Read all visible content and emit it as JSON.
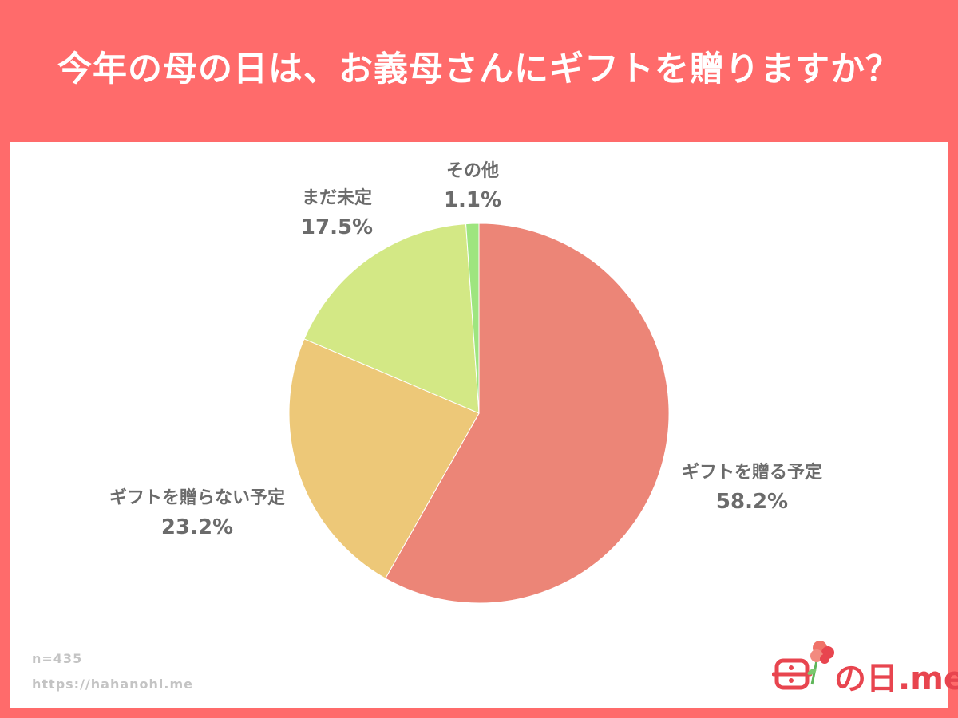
{
  "header": {
    "title": "今年の母の日は、お義母さんにギフトを贈りますか？"
  },
  "chart_data": {
    "type": "pie",
    "title": "今年の母の日は、お義母さんにギフトを贈りますか？",
    "start_angle_deg": 0,
    "direction": "clockwise",
    "slices": [
      {
        "label": "ギフトを贈る予定",
        "value": 58.2,
        "value_label": "58.2%",
        "color": "#ec8577"
      },
      {
        "label": "ギフトを贈らない予定",
        "value": 23.2,
        "value_label": "23.2%",
        "color": "#edc878"
      },
      {
        "label": "まだ未定",
        "value": 17.5,
        "value_label": "17.5%",
        "color": "#d3e885"
      },
      {
        "label": "その他",
        "value": 1.1,
        "value_label": "1.1%",
        "color": "#9ee57f"
      }
    ]
  },
  "footer": {
    "sample_size": "n=435",
    "url": "https://hahanohi.me"
  },
  "logo": {
    "text": "の日.me",
    "color": "#e8454f",
    "icon": "carnation-flower-icon"
  },
  "colors": {
    "background": "#ff6b6b",
    "card": "#ffffff",
    "label_text": "#6b6b6b"
  }
}
